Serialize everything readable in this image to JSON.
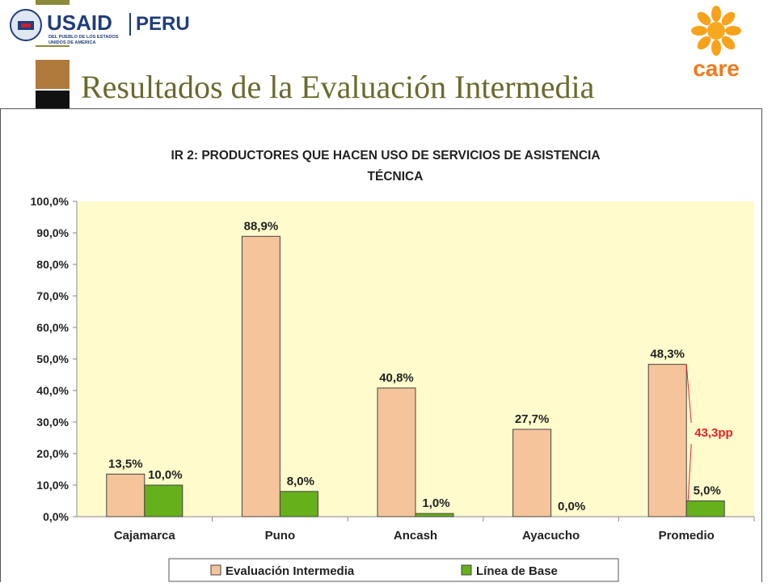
{
  "header": {
    "title": "Resultados de la Evaluación Intermedia",
    "usaid_logo": {
      "name": "USAID",
      "divider_text": "PERU",
      "tagline_line1": "DEL PUEBLO DE LOS ESTADOS",
      "tagline_line2": "UNIDOS DE AMERICA"
    },
    "care_logo": {
      "text": "care"
    }
  },
  "colors": {
    "title": "#6b6a2e",
    "plot_bg": "#fffbcc",
    "bar_eval": "#f5c49a",
    "bar_base": "#66b01b",
    "annotation": "#e8212b",
    "deco_olive": "#8c8a3a",
    "deco_brown": "#b07a3c",
    "deco_black": "#111111"
  },
  "chart_data": {
    "type": "bar",
    "title_line1": "IR 2: PRODUCTORES QUE HACEN USO DE SERVICIOS DE ASISTENCIA",
    "title_line2": "TÉCNICA",
    "categories": [
      "Cajamarca",
      "Puno",
      "Ancash",
      "Ayacucho",
      "Promedio"
    ],
    "series": [
      {
        "name": "Evaluación Intermedia",
        "values": [
          13.5,
          88.9,
          40.8,
          27.7,
          48.3
        ],
        "labels": [
          "13,5%",
          "88,9%",
          "40,8%",
          "27,7%",
          "48,3%"
        ]
      },
      {
        "name": "Línea de Base",
        "values": [
          10.0,
          8.0,
          1.0,
          0.0,
          5.0
        ],
        "labels": [
          "10,0%",
          "8,0%",
          "1,0%",
          "0,0%",
          "5,0%"
        ]
      }
    ],
    "yticks": [
      "0,0%",
      "10,0%",
      "20,0%",
      "30,0%",
      "40,0%",
      "50,0%",
      "60,0%",
      "70,0%",
      "80,0%",
      "90,0%",
      "100,0%"
    ],
    "ylim": [
      0,
      100
    ],
    "annotation": "43,3pp",
    "legend_position": "bottom",
    "grid": false
  }
}
